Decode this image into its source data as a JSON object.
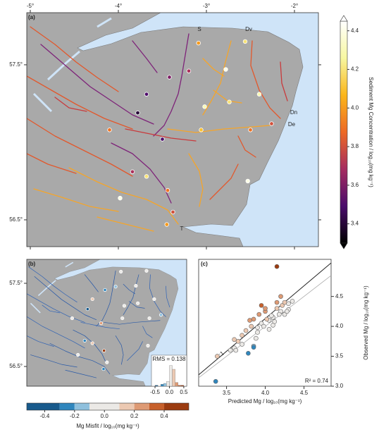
{
  "chart_data": [
    {
      "type": "map",
      "panel": "(a)",
      "xlim": [
        -5.04,
        -1.728
      ],
      "ylim": [
        56.327,
        57.836
      ],
      "xticks": [
        {
          "value": -5,
          "label": "-5°"
        },
        {
          "value": -4,
          "label": "-4°"
        },
        {
          "value": -3,
          "label": "-3°"
        },
        {
          "value": -2,
          "label": "-2°"
        }
      ],
      "yticks": [
        {
          "value": 57.5,
          "label": "57.5°"
        },
        {
          "value": 56.5,
          "label": "56.5°"
        }
      ],
      "site_labels": [
        "S",
        "Dv",
        "Dn",
        "De",
        "T"
      ],
      "sites": {
        "lon": [
          -3.09,
          -2.56,
          -2.78,
          -3.2,
          -3.42,
          -3.68,
          -3.78,
          -4.1,
          -3.5,
          -3.02,
          -2.74,
          -2.4,
          -2.26,
          -2.5,
          -3.06,
          -3.84,
          -3.68,
          -3.98,
          -3.44,
          -3.38,
          -3.45,
          -2.53
        ],
        "lat": [
          57.64,
          57.65,
          57.47,
          57.46,
          57.42,
          57.31,
          57.19,
          57.08,
          57.02,
          57.23,
          57.26,
          57.31,
          57.12,
          57.08,
          57.08,
          56.81,
          56.78,
          56.64,
          56.69,
          56.55,
          56.47,
          56.75
        ],
        "values": [
          4.0,
          4.2,
          4.4,
          3.7,
          3.6,
          3.5,
          3.4,
          3.9,
          3.5,
          4.3,
          4.2,
          4.3,
          3.8,
          3.9,
          4.1,
          3.7,
          4.2,
          4.4,
          3.9,
          3.8,
          4.0,
          4.4
        ]
      },
      "colorbar": {
        "label": "Sediment Mg Concentration / log₁₀(mg kg⁻¹)",
        "clim": [
          3.3,
          4.45
        ],
        "ticks": [
          3.4,
          3.6,
          3.8,
          {
            "value": 4,
            "label": "4.0"
          },
          4.2,
          4.4
        ],
        "colormap": [
          "#000000",
          "#4a0c6b",
          "#a52c60",
          "#ed6925",
          "#fbb61a",
          "#f7f7a0",
          "#ffffff"
        ]
      }
    },
    {
      "type": "map",
      "panel": "(b)",
      "xlim": [
        -5.04,
        -1.728
      ],
      "ylim": [
        56.263,
        57.788
      ],
      "yticks": [
        {
          "value": 57.5,
          "label": "57.5°"
        },
        {
          "value": 56.5,
          "label": "56.5°"
        }
      ],
      "sites": {
        "lon": [
          -3.09,
          -2.56,
          -2.78,
          -3.2,
          -3.42,
          -3.68,
          -3.78,
          -4.1,
          -3.5,
          -3.02,
          -2.74,
          -2.4,
          -2.26,
          -2.5,
          -3.06,
          -3.84,
          -3.68,
          -3.98,
          -3.44,
          -3.38,
          -3.45,
          -2.53
        ],
        "lat": [
          57.64,
          57.65,
          57.47,
          57.46,
          57.42,
          57.31,
          57.19,
          57.08,
          57.02,
          57.23,
          57.26,
          57.31,
          57.12,
          57.08,
          57.08,
          56.81,
          56.78,
          56.64,
          56.69,
          56.55,
          56.47,
          56.75
        ],
        "values": [
          0.0,
          0.05,
          -0.02,
          -0.15,
          -0.25,
          0.12,
          -0.35,
          0.03,
          0.25,
          -0.05,
          0.0,
          0.08,
          -0.12,
          0.02,
          -0.08,
          -0.22,
          0.15,
          -0.05,
          0.45,
          0.02,
          -0.3,
          0.05
        ]
      },
      "histogram": {
        "title": "RMS = 0.138",
        "bins": [
          -0.5,
          -0.4,
          -0.3,
          -0.2,
          -0.1,
          0,
          0.1,
          0.2,
          0.3,
          0.4,
          0.5
        ],
        "counts": [
          1,
          0,
          2,
          3,
          5,
          22,
          18,
          4,
          1,
          1
        ],
        "xlim": [
          -0.55,
          0.6
        ],
        "ylim": [
          0,
          24
        ],
        "xticks": [
          -0.5,
          {
            "value": 0,
            "label": "0.0"
          },
          0.5
        ]
      },
      "colorbar": {
        "label": "Mg Misfit / log₁₀(mg kg⁻¹)",
        "xlim": [
          -0.52,
          0.565
        ],
        "bins": [
          -0.52,
          -0.3,
          -0.2,
          -0.1,
          0.1,
          0.2,
          0.3,
          0.4,
          0.565
        ],
        "colors": [
          "#185a8c",
          "#2f86bd",
          "#8fc0dd",
          "#ebe9e6",
          "#ecc9b2",
          "#de9a74",
          "#c7602b",
          "#9b3b10"
        ],
        "ticks": [
          -0.4,
          -0.2,
          {
            "value": 0,
            "label": "0.0"
          },
          0.2,
          0.4
        ]
      }
    },
    {
      "type": "scatter",
      "panel": "(c)",
      "x_label": "Predicted Mg / log₁₀(mg kg⁻¹)",
      "y_label": "Observed Mg / log₁₀(mg kg⁻¹)",
      "xlim": [
        3.14,
        4.85
      ],
      "ylim": [
        3.0,
        5.12
      ],
      "xticks": [
        3.5,
        {
          "value": 4,
          "label": "4.0"
        },
        4.5
      ],
      "yticks": [
        {
          "value": 3,
          "label": "3.0"
        },
        3.5,
        {
          "value": 4,
          "label": "4.0"
        },
        4.5
      ],
      "x": [
        3.36,
        3.6,
        3.62,
        3.85,
        3.85,
        3.75,
        3.7,
        3.6,
        3.55,
        3.38,
        3.82,
        3.9,
        3.95,
        3.85,
        3.92,
        4.0,
        4.05,
        4.1,
        4.15,
        4.2,
        4.22,
        4.25,
        4.3,
        4.1,
        4.05,
        3.98,
        4.15,
        4.2,
        4.25,
        4.3,
        4.35,
        4.0,
        3.8,
        3.95,
        4.15,
        3.7,
        3.65,
        4.08,
        4.12,
        4.18,
        3.9,
        4.02,
        3.88,
        4.28,
        3.78
      ],
      "y": [
        3.08,
        3.64,
        3.6,
        3.67,
        3.65,
        3.93,
        3.85,
        3.78,
        3.6,
        3.5,
        4.0,
        3.98,
        4.05,
        4.12,
        4.2,
        4.25,
        4.1,
        4.15,
        4.3,
        4.25,
        4.35,
        4.2,
        4.38,
        4.02,
        3.95,
        4.0,
        4.4,
        4.5,
        4.4,
        4.28,
        4.42,
        4.3,
        4.1,
        4.35,
        5.0,
        3.7,
        3.75,
        4.18,
        4.08,
        4.2,
        3.9,
        4.12,
        3.8,
        4.25,
        3.55
      ],
      "fit": {
        "x": [
          3.14,
          4.85
        ],
        "y": [
          3.19,
          5.06
        ]
      },
      "identity_label": "1:1",
      "annotation": "R² = 0.74"
    }
  ]
}
